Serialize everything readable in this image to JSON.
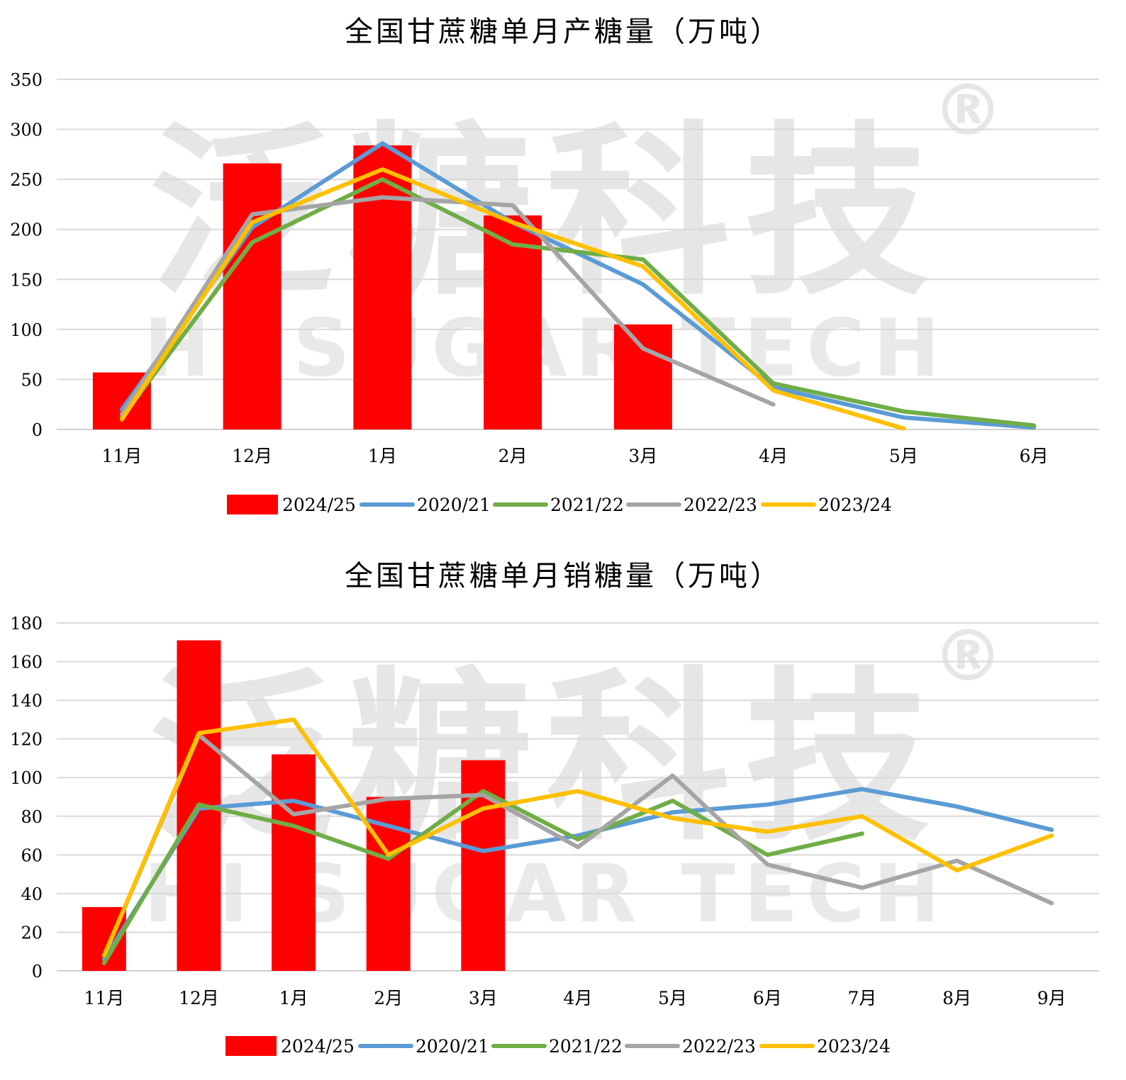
{
  "watermark": {
    "cn": "泛糖科技",
    "en": "HI SUGAR TECH",
    "mark": "®"
  },
  "chart_data": [
    {
      "type": "bar+line",
      "title": "全国甘蔗糖单月产糖量（万吨）",
      "categories": [
        "11月",
        "12月",
        "1月",
        "2月",
        "3月",
        "4月",
        "5月",
        "6月"
      ],
      "ylim": [
        0,
        350
      ],
      "yticks": [
        "0",
        "50",
        "100",
        "150",
        "200",
        "250",
        "300",
        "350"
      ],
      "grid": true,
      "legend_position": "bottom",
      "series": [
        {
          "name": "2024/25",
          "kind": "bar",
          "color": "#ff0000",
          "values": [
            57,
            266,
            284,
            214,
            105,
            null,
            null,
            null
          ]
        },
        {
          "name": "2020/21",
          "kind": "line",
          "color": "#5b9bd5",
          "values": [
            20,
            202,
            286,
            207,
            145,
            42,
            12,
            2
          ]
        },
        {
          "name": "2021/22",
          "kind": "line",
          "color": "#70ad47",
          "values": [
            12,
            187,
            250,
            185,
            170,
            46,
            18,
            4
          ]
        },
        {
          "name": "2022/23",
          "kind": "line",
          "color": "#a5a5a5",
          "values": [
            15,
            215,
            232,
            224,
            81,
            25,
            null,
            null
          ]
        },
        {
          "name": "2023/24",
          "kind": "line",
          "color": "#ffc000",
          "values": [
            10,
            207,
            260,
            207,
            163,
            39,
            1,
            null
          ]
        }
      ]
    },
    {
      "type": "bar+line",
      "title": "全国甘蔗糖单月销糖量（万吨）",
      "categories": [
        "11月",
        "12月",
        "1月",
        "2月",
        "3月",
        "4月",
        "5月",
        "6月",
        "7月",
        "8月",
        "9月"
      ],
      "ylim": [
        0,
        180
      ],
      "yticks": [
        "0",
        "20",
        "40",
        "60",
        "80",
        "100",
        "120",
        "140",
        "160",
        "180"
      ],
      "grid": true,
      "legend_position": "bottom",
      "series": [
        {
          "name": "2024/25",
          "kind": "bar",
          "color": "#ff0000",
          "values": [
            33,
            171,
            112,
            90,
            109,
            null,
            null,
            null,
            null,
            null,
            null
          ]
        },
        {
          "name": "2020/21",
          "kind": "line",
          "color": "#5b9bd5",
          "values": [
            6,
            84,
            88,
            75,
            62,
            70,
            82,
            86,
            94,
            85,
            73
          ]
        },
        {
          "name": "2021/22",
          "kind": "line",
          "color": "#70ad47",
          "values": [
            4,
            86,
            75,
            58,
            93,
            68,
            88,
            60,
            71,
            null,
            null
          ]
        },
        {
          "name": "2022/23",
          "kind": "line",
          "color": "#a5a5a5",
          "values": [
            8,
            122,
            81,
            89,
            91,
            64,
            101,
            55,
            43,
            57,
            35
          ]
        },
        {
          "name": "2023/24",
          "kind": "line",
          "color": "#ffc000",
          "values": [
            8,
            123,
            130,
            60,
            84,
            93,
            79,
            72,
            80,
            52,
            70
          ]
        }
      ]
    }
  ]
}
